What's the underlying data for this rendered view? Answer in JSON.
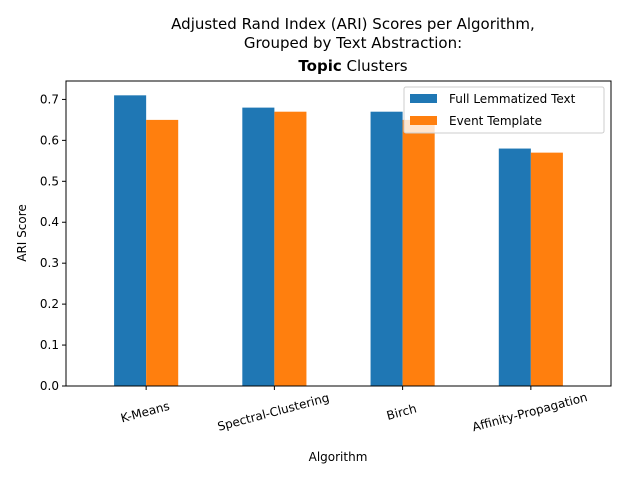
{
  "chart_data": {
    "type": "bar",
    "title_lines": [
      "Adjusted Rand Index (ARI) Scores per Algorithm,",
      "Grouped by Text Abstraction:"
    ],
    "title_bold": "Topic",
    "title_rest": " Clusters",
    "xlabel": "Algorithm",
    "ylabel": "ARI Score",
    "categories": [
      "K-Means",
      "Spectral-Clustering",
      "Birch",
      "Affinity-Propagation"
    ],
    "series": [
      {
        "name": "Full Lemmatized Text",
        "values": [
          0.71,
          0.68,
          0.67,
          0.58
        ],
        "color": "#1f77b4"
      },
      {
        "name": "Event Template",
        "values": [
          0.65,
          0.67,
          0.65,
          0.57
        ],
        "color": "#ff7f0e"
      }
    ],
    "ylim": [
      0,
      0.745
    ],
    "yticks": [
      0.0,
      0.1,
      0.2,
      0.3,
      0.4,
      0.5,
      0.6,
      0.7
    ],
    "ytick_labels": [
      "0.0",
      "0.1",
      "0.2",
      "0.3",
      "0.4",
      "0.5",
      "0.6",
      "0.7"
    ],
    "grid": false,
    "legend_position": "top-right"
  }
}
